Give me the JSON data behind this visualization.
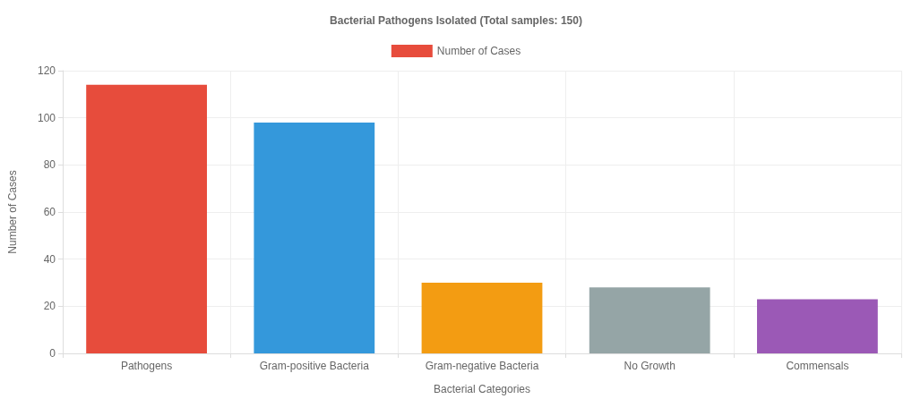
{
  "chart_data": {
    "type": "bar",
    "title": "Bacterial Pathogens Isolated (Total samples: 150)",
    "xlabel": "Bacterial Categories",
    "ylabel": "Number of Cases",
    "categories": [
      "Pathogens",
      "Gram-positive Bacteria",
      "Gram-negative Bacteria",
      "No Growth",
      "Commensals"
    ],
    "series": [
      {
        "name": "Number of Cases",
        "colors": [
          "#e74c3c",
          "#3498db",
          "#f39c12",
          "#95a5a6",
          "#9b59b6"
        ],
        "values": [
          114,
          98,
          30,
          28,
          23
        ]
      }
    ],
    "ylim": [
      0,
      120
    ],
    "yticks": [
      0,
      20,
      40,
      60,
      80,
      100,
      120
    ],
    "grid": true,
    "legend": "top"
  }
}
